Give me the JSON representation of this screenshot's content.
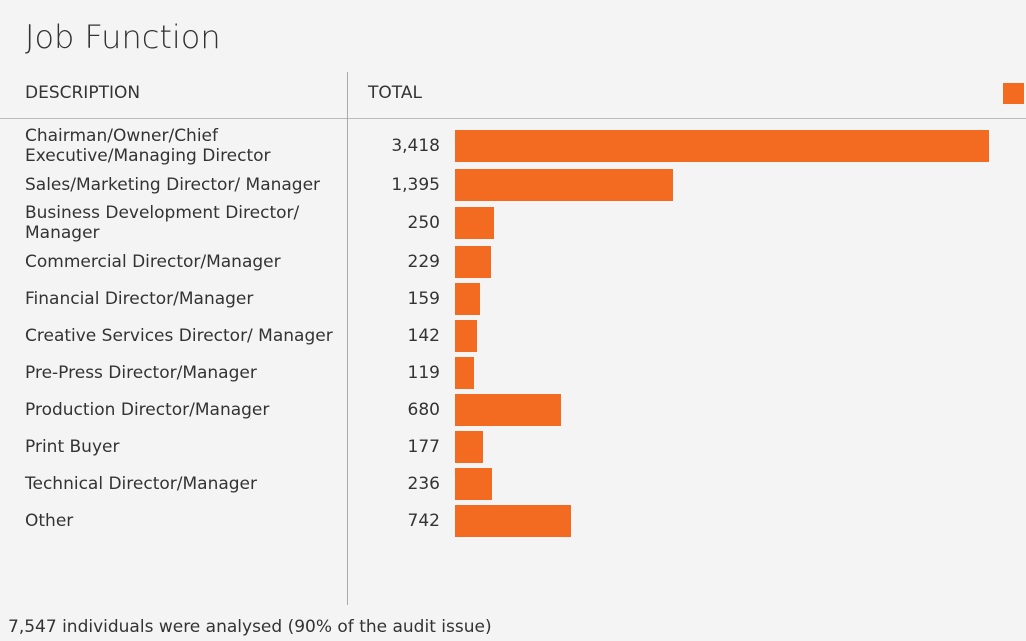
{
  "chart_data": {
    "type": "bar",
    "title": "Job Function",
    "columns": [
      "DESCRIPTION",
      "TOTAL"
    ],
    "categories": [
      "Chairman/Owner/Chief Executive/Managing Director",
      "Sales/Marketing Director/ Manager",
      "Business Development Director/ Manager",
      "Commercial Director/Manager",
      "Financial Director/Manager",
      "Creative Services Director/ Manager",
      "Pre-Press Director/Manager",
      "Production Director/Manager",
      "Print Buyer",
      "Technical Director/Manager",
      "Other"
    ],
    "values": [
      3418,
      1395,
      250,
      229,
      159,
      142,
      119,
      680,
      177,
      236,
      742
    ],
    "value_labels": [
      "3,418",
      "1,395",
      "250",
      "229",
      "159",
      "142",
      "119",
      "680",
      "177",
      "236",
      "742"
    ],
    "color": "#f26b21",
    "footnote": "7,547 individuals were analysed (90% of the audit issue)"
  }
}
